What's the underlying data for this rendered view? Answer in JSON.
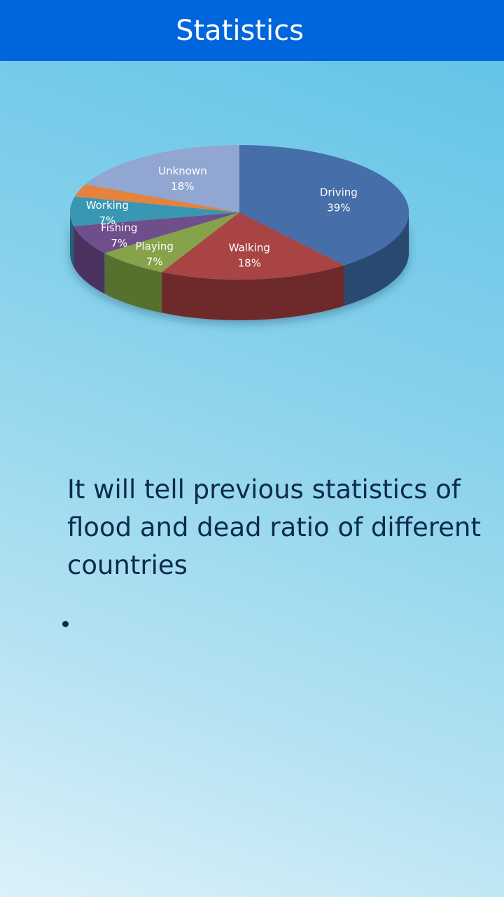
{
  "header": {
    "title": "Statistics"
  },
  "chart_data": {
    "type": "pie",
    "title": "",
    "slices": [
      {
        "label": "Driving",
        "value": 39,
        "display": "39%",
        "color": "#466ea8",
        "side": "#2a4870"
      },
      {
        "label": "Walking",
        "value": 18,
        "display": "18%",
        "color": "#a84444",
        "side": "#6e2a2a"
      },
      {
        "label": "Playing",
        "value": 7,
        "display": "7%",
        "color": "#86a24a",
        "side": "#57702d"
      },
      {
        "label": "Fishing",
        "value": 7,
        "display": "7%",
        "color": "#6f4e8c",
        "side": "#4a325e"
      },
      {
        "label": "Working",
        "value": 7,
        "display": "7%",
        "color": "#3a97b4",
        "side": "#246478"
      },
      {
        "label": "",
        "value": 3,
        "display": "",
        "color": "#e5823c",
        "side": "#9e5420"
      },
      {
        "label": "Unknown",
        "value": 18,
        "display": "18%",
        "color": "#92a6d2",
        "side": "#62749a"
      }
    ]
  },
  "content": {
    "description": "It will tell previous statistics of flood and dead ratio of different countries"
  }
}
